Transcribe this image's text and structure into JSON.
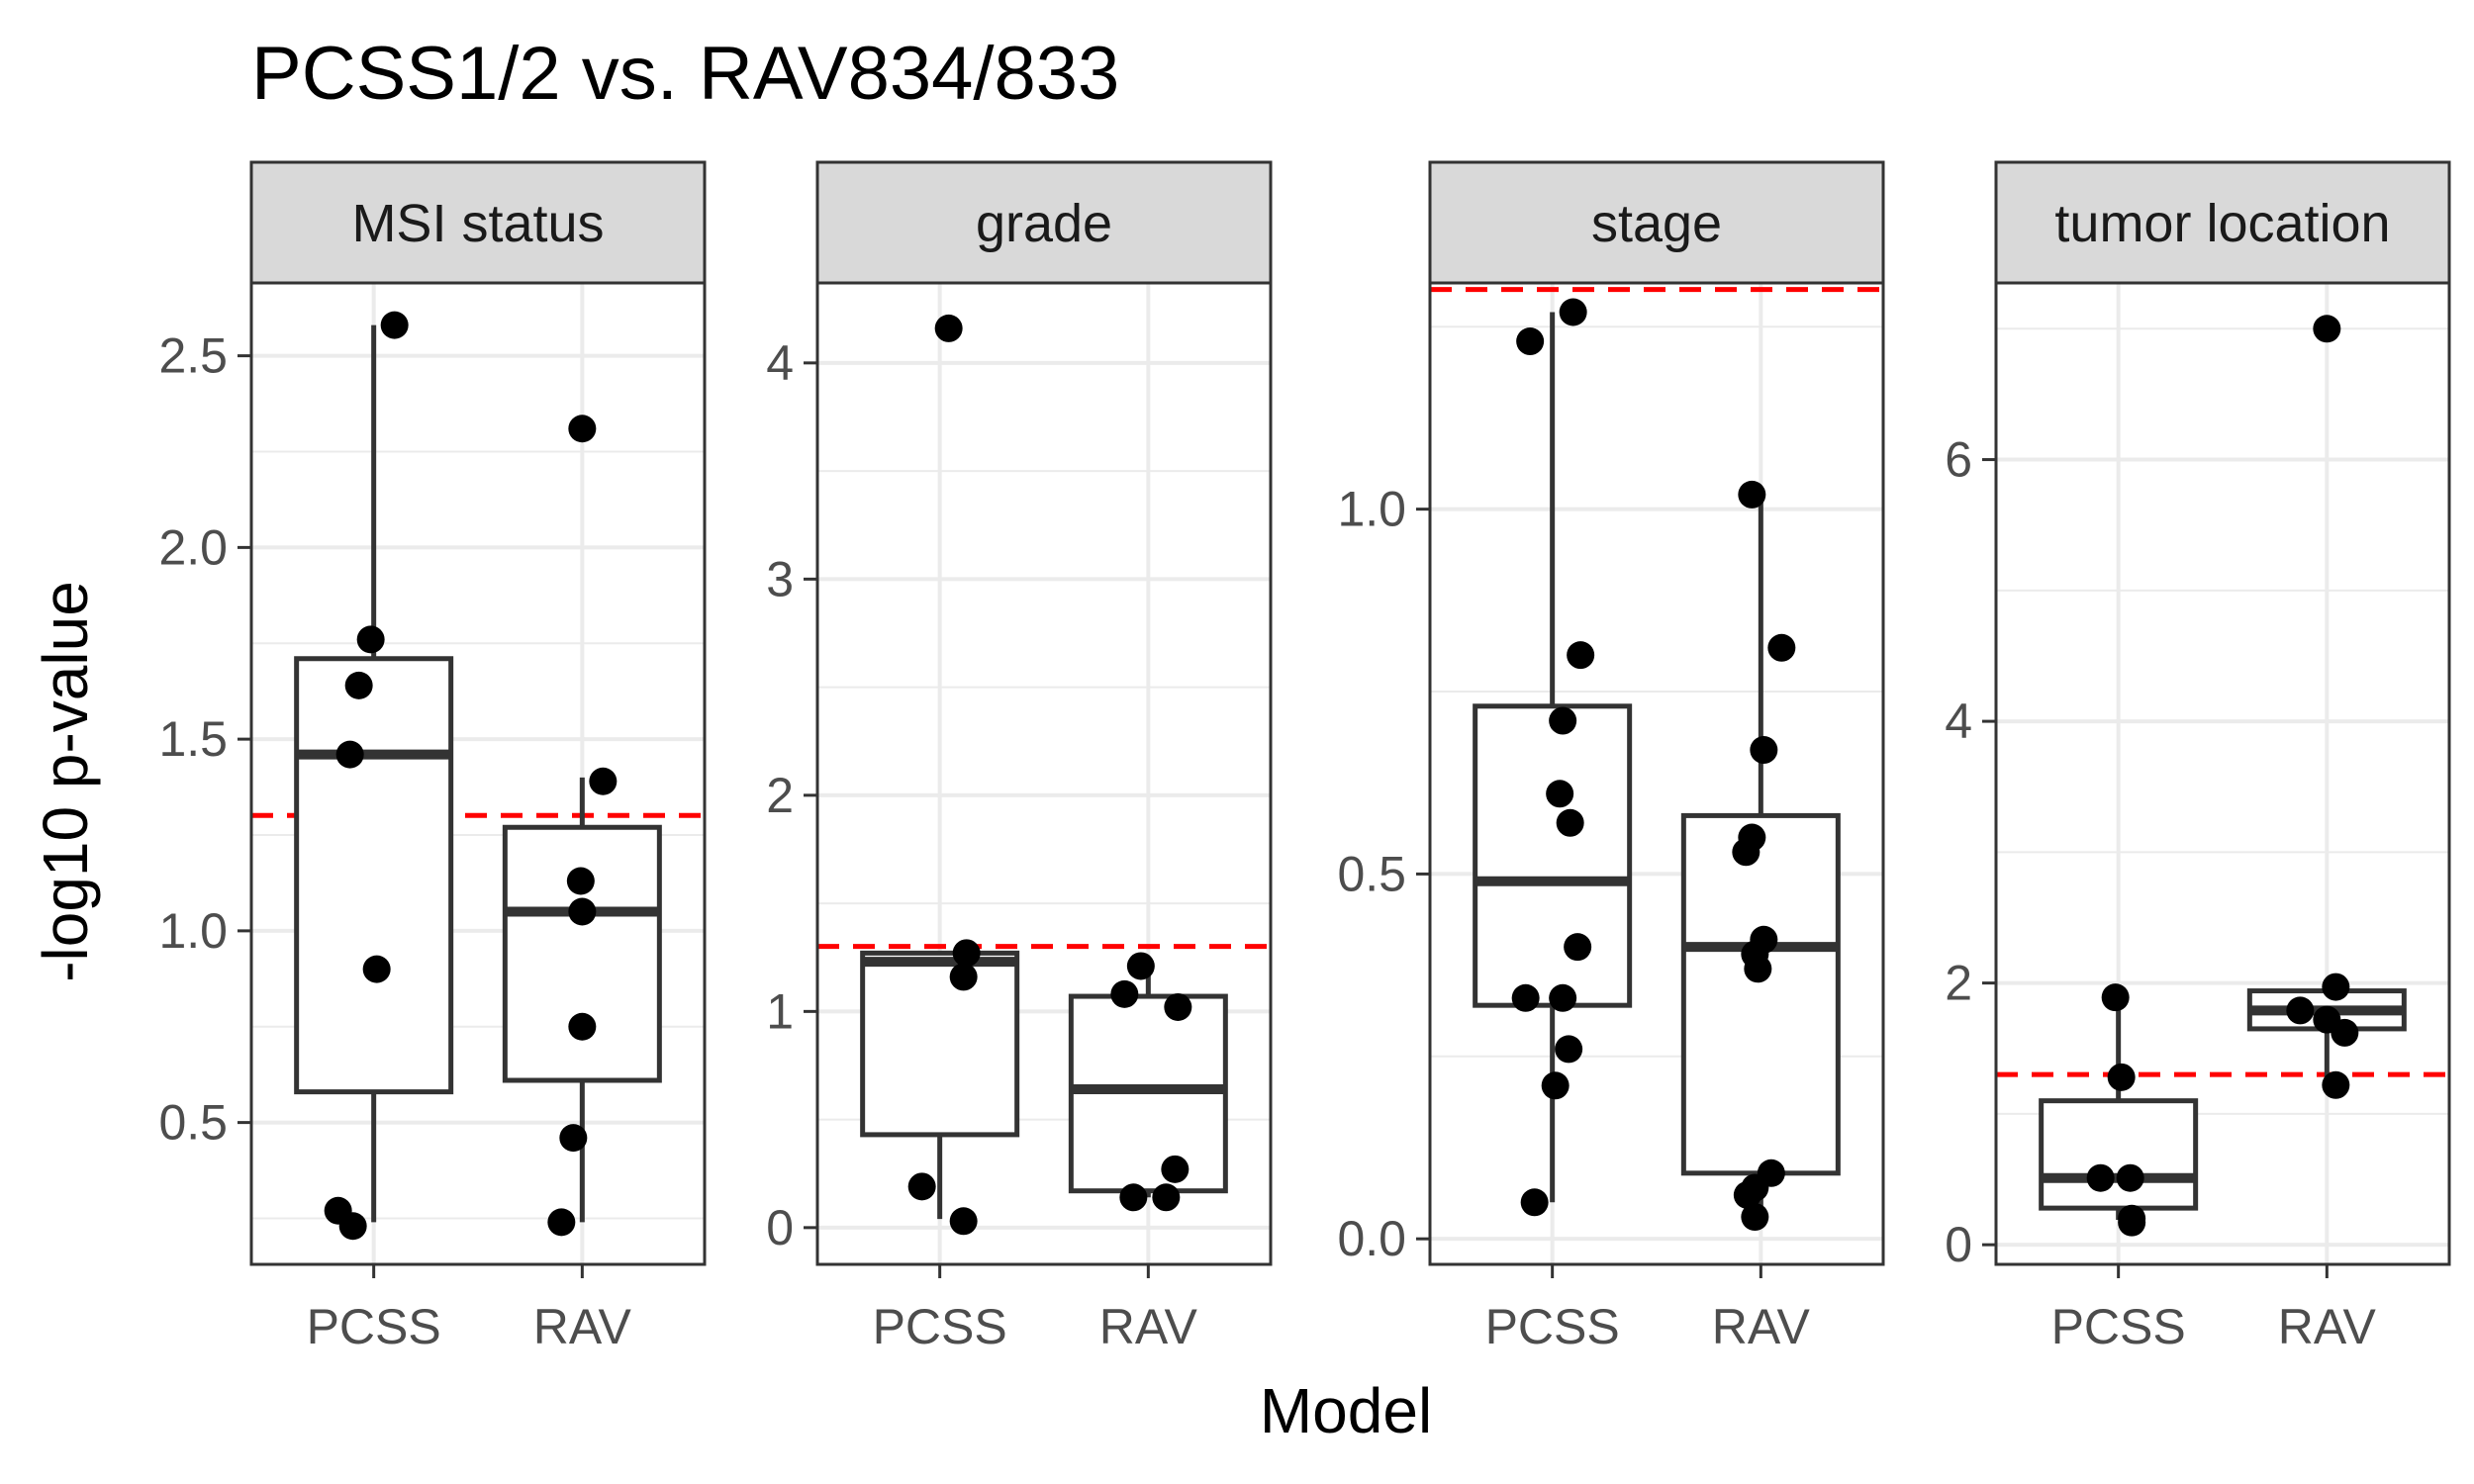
{
  "chart_data": {
    "type": "boxplot",
    "title": "PCSS1/2 vs. RAV834/833",
    "xlabel": "Model",
    "ylabel": "-log10 p-value",
    "categories": [
      "PCSS",
      "RAV"
    ],
    "reference_line": {
      "value": 1.30103,
      "style": "dashed",
      "color": "#ff0000"
    },
    "colors": {
      "points": "#000000",
      "box": "#333333",
      "grid": "#ebebeb",
      "strip_fill": "#d9d9d9",
      "panel_border": "#333333"
    },
    "grid": true,
    "panels": [
      {
        "strip": "MSI status",
        "ylim": [
          0.13,
          2.69
        ],
        "yticks": [
          0.5,
          1.0,
          1.5,
          2.0,
          2.5
        ],
        "ytick_labels": [
          "0.5",
          "1.0",
          "1.5",
          "2.0",
          "2.5"
        ],
        "boxes": [
          {
            "category": "PCSS",
            "whisker_low": 0.24,
            "q1": 0.58,
            "median": 1.46,
            "q3": 1.71,
            "whisker_high": 2.58
          },
          {
            "category": "RAV",
            "whisker_low": 0.24,
            "q1": 0.61,
            "median": 1.05,
            "q3": 1.27,
            "whisker_high": 1.4
          }
        ],
        "points": [
          {
            "category": "PCSS",
            "jitter": 0.14,
            "y": 2.58
          },
          {
            "category": "PCSS",
            "jitter": -0.02,
            "y": 1.76
          },
          {
            "category": "PCSS",
            "jitter": -0.1,
            "y": 1.64
          },
          {
            "category": "PCSS",
            "jitter": -0.16,
            "y": 1.46
          },
          {
            "category": "PCSS",
            "jitter": 0.02,
            "y": 0.9
          },
          {
            "category": "PCSS",
            "jitter": -0.24,
            "y": 0.27
          },
          {
            "category": "PCSS",
            "jitter": -0.14,
            "y": 0.23
          },
          {
            "category": "RAV",
            "jitter": 0.0,
            "y": 2.31
          },
          {
            "category": "RAV",
            "jitter": 0.14,
            "y": 1.39
          },
          {
            "category": "RAV",
            "jitter": -0.01,
            "y": 1.13
          },
          {
            "category": "RAV",
            "jitter": 0.0,
            "y": 1.05
          },
          {
            "category": "RAV",
            "jitter": 0.0,
            "y": 0.75
          },
          {
            "category": "RAV",
            "jitter": -0.06,
            "y": 0.46
          },
          {
            "category": "RAV",
            "jitter": -0.14,
            "y": 0.24
          }
        ]
      },
      {
        "strip": "grade",
        "ylim": [
          -0.17,
          4.37
        ],
        "yticks": [
          0,
          1,
          2,
          3,
          4
        ],
        "ytick_labels": [
          "0",
          "1",
          "2",
          "3",
          "4"
        ],
        "boxes": [
          {
            "category": "PCSS",
            "whisker_low": 0.04,
            "q1": 0.43,
            "median": 1.23,
            "q3": 1.27,
            "whisker_high": 1.27
          },
          {
            "category": "RAV",
            "whisker_low": 0.14,
            "q1": 0.17,
            "median": 0.64,
            "q3": 1.07,
            "whisker_high": 1.2
          }
        ],
        "points": [
          {
            "category": "PCSS",
            "jitter": 0.06,
            "y": 4.16
          },
          {
            "category": "PCSS",
            "jitter": 0.18,
            "y": 1.27
          },
          {
            "category": "PCSS",
            "jitter": 0.16,
            "y": 1.16
          },
          {
            "category": "PCSS",
            "jitter": -0.12,
            "y": 0.19
          },
          {
            "category": "PCSS",
            "jitter": 0.16,
            "y": 0.03
          },
          {
            "category": "RAV",
            "jitter": -0.05,
            "y": 1.21
          },
          {
            "category": "RAV",
            "jitter": -0.16,
            "y": 1.08
          },
          {
            "category": "RAV",
            "jitter": 0.2,
            "y": 1.02
          },
          {
            "category": "RAV",
            "jitter": 0.18,
            "y": 0.27
          },
          {
            "category": "RAV",
            "jitter": -0.1,
            "y": 0.14
          },
          {
            "category": "RAV",
            "jitter": 0.12,
            "y": 0.14
          }
        ]
      },
      {
        "strip": "stage",
        "ylim": [
          -0.035,
          1.31
        ],
        "yticks": [
          0.0,
          0.5,
          1.0
        ],
        "ytick_labels": [
          "0.0",
          "0.5",
          "1.0"
        ],
        "boxes": [
          {
            "category": "PCSS",
            "whisker_low": 0.05,
            "q1": 0.32,
            "median": 0.49,
            "q3": 0.73,
            "whisker_high": 1.27
          },
          {
            "category": "RAV",
            "whisker_low": 0.03,
            "q1": 0.09,
            "median": 0.4,
            "q3": 0.58,
            "whisker_high": 1.02
          }
        ],
        "points": [
          {
            "category": "PCSS",
            "jitter": 0.14,
            "y": 1.27
          },
          {
            "category": "PCSS",
            "jitter": -0.15,
            "y": 1.23
          },
          {
            "category": "PCSS",
            "jitter": 0.19,
            "y": 0.8
          },
          {
            "category": "PCSS",
            "jitter": 0.07,
            "y": 0.71
          },
          {
            "category": "PCSS",
            "jitter": 0.05,
            "y": 0.61
          },
          {
            "category": "PCSS",
            "jitter": 0.12,
            "y": 0.57
          },
          {
            "category": "PCSS",
            "jitter": 0.17,
            "y": 0.4
          },
          {
            "category": "PCSS",
            "jitter": -0.18,
            "y": 0.33
          },
          {
            "category": "PCSS",
            "jitter": 0.07,
            "y": 0.33
          },
          {
            "category": "PCSS",
            "jitter": 0.11,
            "y": 0.26
          },
          {
            "category": "PCSS",
            "jitter": 0.02,
            "y": 0.21
          },
          {
            "category": "PCSS",
            "jitter": -0.12,
            "y": 0.05
          },
          {
            "category": "RAV",
            "jitter": -0.06,
            "y": 1.02
          },
          {
            "category": "RAV",
            "jitter": 0.14,
            "y": 0.81
          },
          {
            "category": "RAV",
            "jitter": 0.02,
            "y": 0.67
          },
          {
            "category": "RAV",
            "jitter": -0.06,
            "y": 0.55
          },
          {
            "category": "RAV",
            "jitter": -0.1,
            "y": 0.53
          },
          {
            "category": "RAV",
            "jitter": 0.02,
            "y": 0.41
          },
          {
            "category": "RAV",
            "jitter": -0.04,
            "y": 0.39
          },
          {
            "category": "RAV",
            "jitter": -0.02,
            "y": 0.37
          },
          {
            "category": "RAV",
            "jitter": 0.07,
            "y": 0.09
          },
          {
            "category": "RAV",
            "jitter": -0.04,
            "y": 0.07
          },
          {
            "category": "RAV",
            "jitter": -0.09,
            "y": 0.06
          },
          {
            "category": "RAV",
            "jitter": -0.04,
            "y": 0.03
          }
        ]
      },
      {
        "strip": "tumor location",
        "ylim": [
          -0.15,
          7.35
        ],
        "yticks": [
          0,
          2,
          4,
          6
        ],
        "ytick_labels": [
          "0",
          "2",
          "4",
          "6"
        ],
        "boxes": [
          {
            "category": "PCSS",
            "whisker_low": 0.19,
            "q1": 0.28,
            "median": 0.51,
            "q3": 1.1,
            "whisker_high": 1.89
          },
          {
            "category": "RAV",
            "whisker_low": 1.22,
            "q1": 1.65,
            "median": 1.79,
            "q3": 1.94,
            "whisker_high": 1.97
          }
        ],
        "points": [
          {
            "category": "PCSS",
            "jitter": -0.02,
            "y": 1.89
          },
          {
            "category": "PCSS",
            "jitter": 0.02,
            "y": 1.28
          },
          {
            "category": "PCSS",
            "jitter": -0.12,
            "y": 0.51
          },
          {
            "category": "PCSS",
            "jitter": 0.08,
            "y": 0.51
          },
          {
            "category": "PCSS",
            "jitter": 0.09,
            "y": 0.2
          },
          {
            "category": "PCSS",
            "jitter": 0.09,
            "y": 0.17
          },
          {
            "category": "RAV",
            "jitter": 0.0,
            "y": 7.0
          },
          {
            "category": "RAV",
            "jitter": 0.06,
            "y": 1.97
          },
          {
            "category": "RAV",
            "jitter": -0.18,
            "y": 1.79
          },
          {
            "category": "RAV",
            "jitter": 0.0,
            "y": 1.72
          },
          {
            "category": "RAV",
            "jitter": 0.12,
            "y": 1.62
          },
          {
            "category": "RAV",
            "jitter": 0.06,
            "y": 1.22
          }
        ]
      }
    ]
  }
}
